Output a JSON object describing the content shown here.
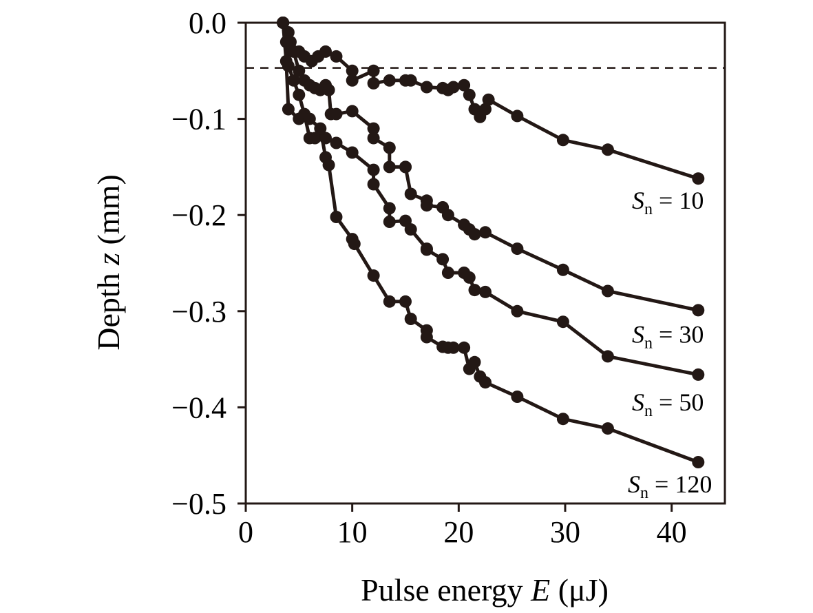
{
  "chart_data": {
    "type": "scatter",
    "title": "",
    "xlabel": {
      "main": "Pulse energy ",
      "var": "E",
      "unit": " (μJ)"
    },
    "ylabel": {
      "main": "Depth ",
      "var": "z",
      "unit": " (mm)"
    },
    "xlim": [
      0,
      45
    ],
    "ylim": [
      -0.5,
      0.0
    ],
    "xticks": [
      0,
      10,
      20,
      30,
      40
    ],
    "xtick_labels": [
      "0",
      "10",
      "20",
      "30",
      "40"
    ],
    "yticks": [
      0.0,
      -0.1,
      -0.2,
      -0.3,
      -0.4,
      -0.5
    ],
    "ytick_labels": [
      "0.0",
      "−0.1",
      "−0.2",
      "−0.3",
      "−0.4",
      "−0.5"
    ],
    "grid": false,
    "legend": "none",
    "color": "#231815",
    "reference_line": {
      "y": -0.047,
      "style": "dashed"
    },
    "series": [
      {
        "label": {
          "var": "S",
          "sub": "n",
          "text": " = 10"
        },
        "x": [
          3.5,
          4.0,
          4.2,
          5.0,
          5.5,
          6.2,
          6.8,
          7.5,
          8.5,
          10.0,
          10.0,
          12.0,
          12.0,
          13.5,
          15.0,
          15.5,
          17.0,
          18.5,
          19.0,
          19.5,
          20.5,
          21.0,
          21.5,
          22.0,
          22.5,
          22.8,
          25.5,
          29.8,
          34.0,
          42.5
        ],
        "y": [
          0.0,
          -0.01,
          -0.02,
          -0.03,
          -0.035,
          -0.04,
          -0.035,
          -0.03,
          -0.035,
          -0.05,
          -0.06,
          -0.05,
          -0.063,
          -0.06,
          -0.06,
          -0.06,
          -0.067,
          -0.068,
          -0.07,
          -0.067,
          -0.065,
          -0.075,
          -0.09,
          -0.098,
          -0.09,
          -0.08,
          -0.097,
          -0.122,
          -0.132,
          -0.162
        ]
      },
      {
        "label": {
          "var": "S",
          "sub": "n",
          "text": " = 30"
        },
        "x": [
          3.5,
          4.0,
          4.5,
          5.0,
          5.5,
          6.0,
          6.5,
          7.0,
          7.5,
          7.8,
          8.0,
          8.5,
          10.0,
          12.0,
          12.0,
          13.5,
          13.5,
          15.0,
          15.0,
          15.5,
          17.0,
          17.0,
          18.5,
          19.0,
          20.5,
          21.0,
          21.5,
          22.5,
          25.5,
          29.8,
          34.0,
          42.5
        ],
        "y": [
          0.0,
          -0.02,
          -0.03,
          -0.05,
          -0.06,
          -0.065,
          -0.068,
          -0.07,
          -0.065,
          -0.07,
          -0.095,
          -0.095,
          -0.092,
          -0.11,
          -0.12,
          -0.13,
          -0.15,
          -0.15,
          -0.15,
          -0.178,
          -0.185,
          -0.19,
          -0.192,
          -0.2,
          -0.21,
          -0.215,
          -0.22,
          -0.218,
          -0.235,
          -0.257,
          -0.279,
          -0.299
        ]
      },
      {
        "label": {
          "var": "S",
          "sub": "n",
          "text": " = 50"
        },
        "x": [
          3.5,
          3.8,
          4.0,
          4.5,
          5.0,
          5.5,
          6.0,
          6.5,
          7.5,
          8.5,
          10.0,
          12.0,
          12.0,
          13.5,
          13.5,
          15.0,
          15.5,
          17.0,
          17.0,
          18.5,
          19.0,
          20.5,
          21.0,
          21.5,
          22.5,
          25.5,
          29.8,
          34.0,
          42.5
        ],
        "y": [
          0.0,
          -0.02,
          -0.045,
          -0.06,
          -0.075,
          -0.095,
          -0.12,
          -0.12,
          -0.12,
          -0.125,
          -0.135,
          -0.153,
          -0.168,
          -0.193,
          -0.207,
          -0.206,
          -0.215,
          -0.235,
          -0.236,
          -0.246,
          -0.26,
          -0.26,
          -0.265,
          -0.278,
          -0.28,
          -0.3,
          -0.311,
          -0.347,
          -0.366
        ]
      },
      {
        "label": {
          "var": "S",
          "sub": "n",
          "text": " = 120"
        },
        "x": [
          3.5,
          3.8,
          4.0,
          5.0,
          6.0,
          7.0,
          7.5,
          7.8,
          8.5,
          10.0,
          10.2,
          12.0,
          13.5,
          15.0,
          15.5,
          17.0,
          17.0,
          18.5,
          19.0,
          19.5,
          20.5,
          21.0,
          21.5,
          22.0,
          22.5,
          25.5,
          29.8,
          34.0,
          42.5
        ],
        "y": [
          0.0,
          -0.04,
          -0.09,
          -0.1,
          -0.1,
          -0.11,
          -0.14,
          -0.148,
          -0.202,
          -0.225,
          -0.23,
          -0.263,
          -0.29,
          -0.29,
          -0.308,
          -0.32,
          -0.327,
          -0.337,
          -0.338,
          -0.338,
          -0.338,
          -0.36,
          -0.353,
          -0.368,
          -0.374,
          -0.389,
          -0.412,
          -0.422,
          -0.457
        ]
      }
    ]
  }
}
